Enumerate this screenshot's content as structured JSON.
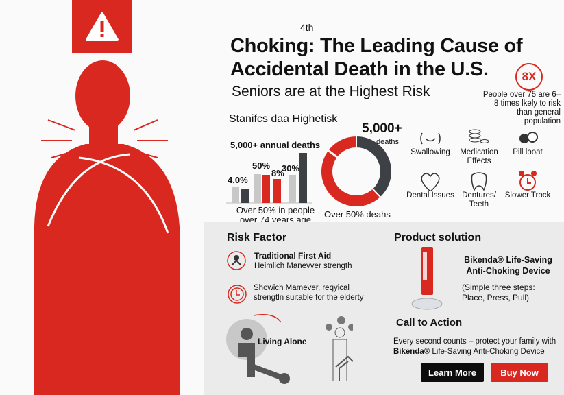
{
  "title": {
    "line1": "Choking: The Leading Cause of",
    "line2": "Accidental Death in the U.S.",
    "superscript": "4th"
  },
  "subtitle": "Seniors are at the Highest Risk",
  "badge": {
    "value": "8X",
    "text": "People over 75 are 6–8 times lkely to risk than general population"
  },
  "stats": {
    "heading": "Stanifcs daa Highetisk",
    "annual": "5,000+ annual deaths",
    "bar_labels": [
      "4,0%",
      "50%",
      "8%",
      "30%"
    ],
    "bar_caption": "Over 50% in people over 74 years age"
  },
  "chart_data": [
    {
      "type": "bar",
      "title": "5,000+ annual deaths",
      "values": [
        23,
        20,
        42,
        41,
        35,
        41,
        73
      ],
      "colors": [
        "#c8c8c8",
        "#3d4045",
        "#c8c8c8",
        "#d9281f",
        "#d9281f",
        "#c8c8c8",
        "#3d4045"
      ]
    },
    {
      "type": "pie",
      "title": "5,000+",
      "slices": [
        {
          "label": "deaths",
          "value": 38,
          "color": "#3d4045"
        },
        {
          "label": "Over 50% deahs",
          "value": 62,
          "color": "#d9281f"
        }
      ]
    }
  ],
  "donut": {
    "big": "5,000+",
    "small": "deaths",
    "caption": "Over 50% deahs"
  },
  "factors": [
    {
      "label": "Swallowing",
      "icon": "swallowing-icon"
    },
    {
      "label": "Medication Effects",
      "icon": "coins-icon"
    },
    {
      "label": "Pill looat",
      "icon": "pill-icon"
    },
    {
      "label": "Dental Issues",
      "icon": "heart-icon"
    },
    {
      "label": "Dentures/ Teeth",
      "icon": "tooth-icon"
    },
    {
      "label": "Slower Trock",
      "icon": "alarm-clock-icon"
    }
  ],
  "risk": {
    "heading": "Risk Factor",
    "item1_title": "Traditional First Aid",
    "item1_text": "Heimlich Manevver strength",
    "item2_text": "Showich Mamever, reqyical strengtln suitable for the elderty",
    "living_alone": "Living Alone"
  },
  "product": {
    "heading": "Product solution",
    "name": "Bikenda® Life-Saving Anti-Choking Device",
    "steps": "(Simple three steps: Place, Press, Pull)"
  },
  "cta": {
    "heading": "Call to Action",
    "text1": "Every second counts – protect your family with",
    "brand": "Bikenda®",
    "text2": " Life-Saving Anti-Choking Device",
    "learn_more": "Learn More",
    "buy_now": "Buy Now"
  },
  "colors": {
    "red": "#d9281f",
    "dark": "#3d4045",
    "panel": "#ebebeb"
  }
}
